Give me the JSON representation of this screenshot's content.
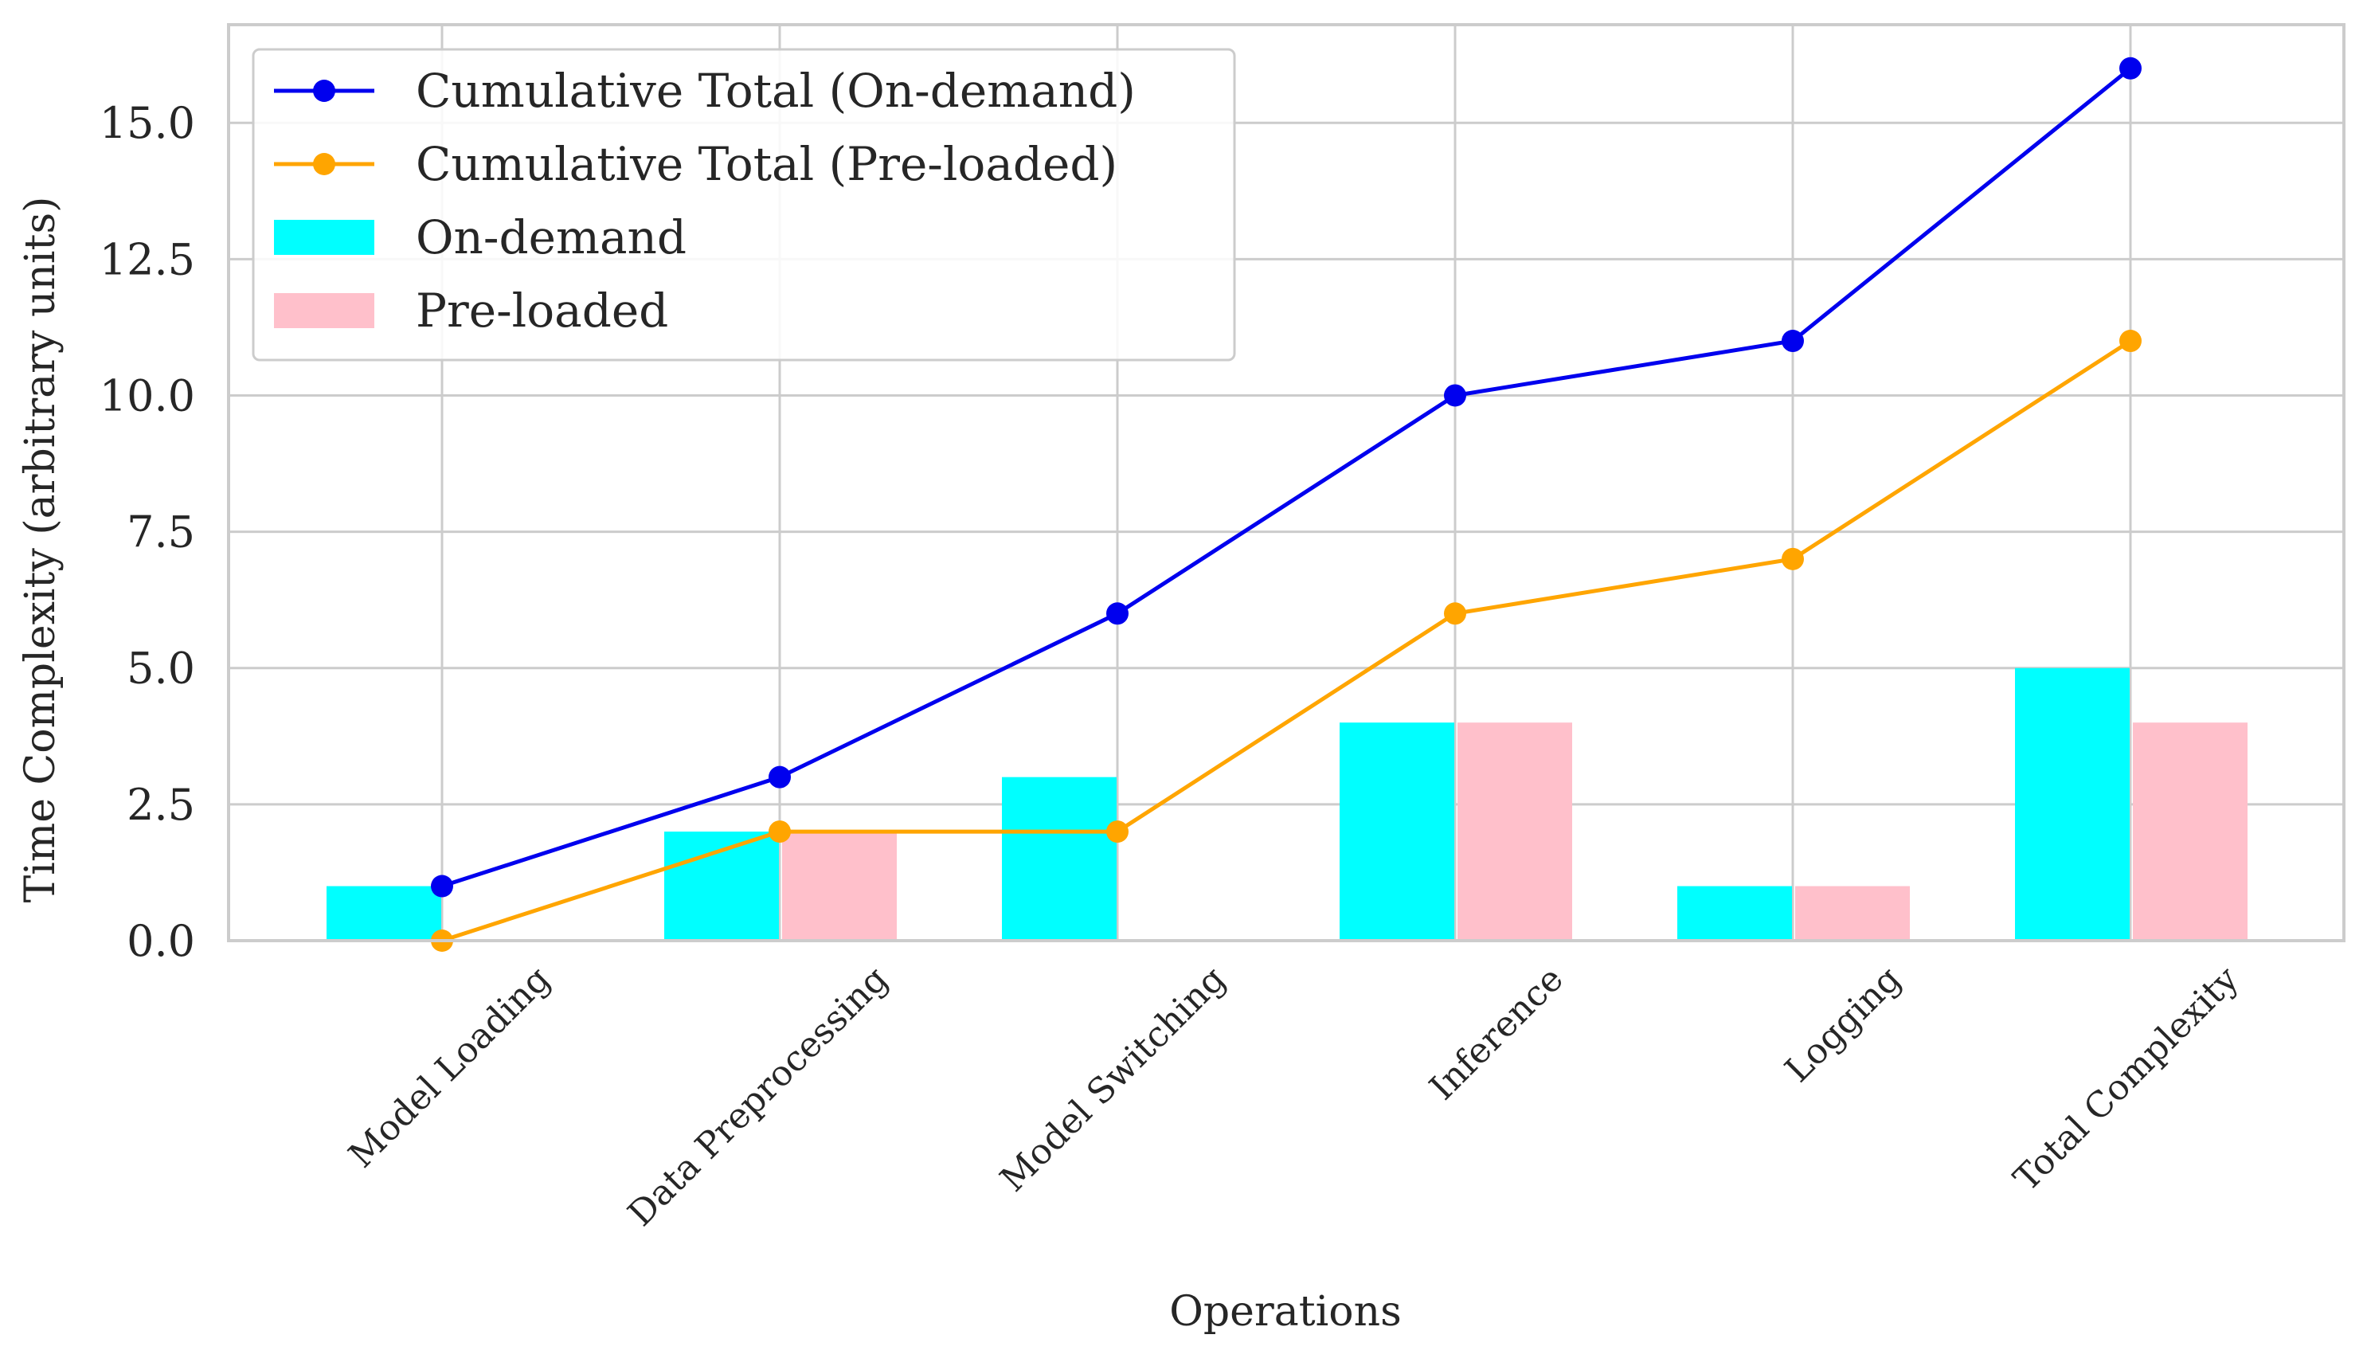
{
  "chart_data": {
    "type": "bar",
    "title": "",
    "xlabel": "Operations",
    "ylabel": "Time Complexity (arbitrary units)",
    "categories": [
      "Model Loading",
      "Data Preprocessing",
      "Model Switching",
      "Inference",
      "Logging",
      "Total Complexity"
    ],
    "ylim": [
      0,
      16.8
    ],
    "yticks": [
      "0.0",
      "2.5",
      "5.0",
      "7.5",
      "10.0",
      "12.5",
      "15.0"
    ],
    "grid": true,
    "legend_position": "top-left",
    "bar_series": [
      {
        "name": "On-demand",
        "color": "#00ffff",
        "values": [
          1,
          2,
          3,
          4,
          1,
          5
        ]
      },
      {
        "name": "Pre-loaded",
        "color": "#ffc0cb",
        "values": [
          0,
          2,
          0,
          4,
          1,
          4
        ]
      }
    ],
    "line_series": [
      {
        "name": "Cumulative Total (On-demand)",
        "color": "#0000ee",
        "values": [
          1,
          3,
          6,
          10,
          11,
          16
        ]
      },
      {
        "name": "Cumulative Total (Pre-loaded)",
        "color": "#ffa500",
        "values": [
          0,
          2,
          2,
          6,
          7,
          11
        ]
      }
    ]
  }
}
